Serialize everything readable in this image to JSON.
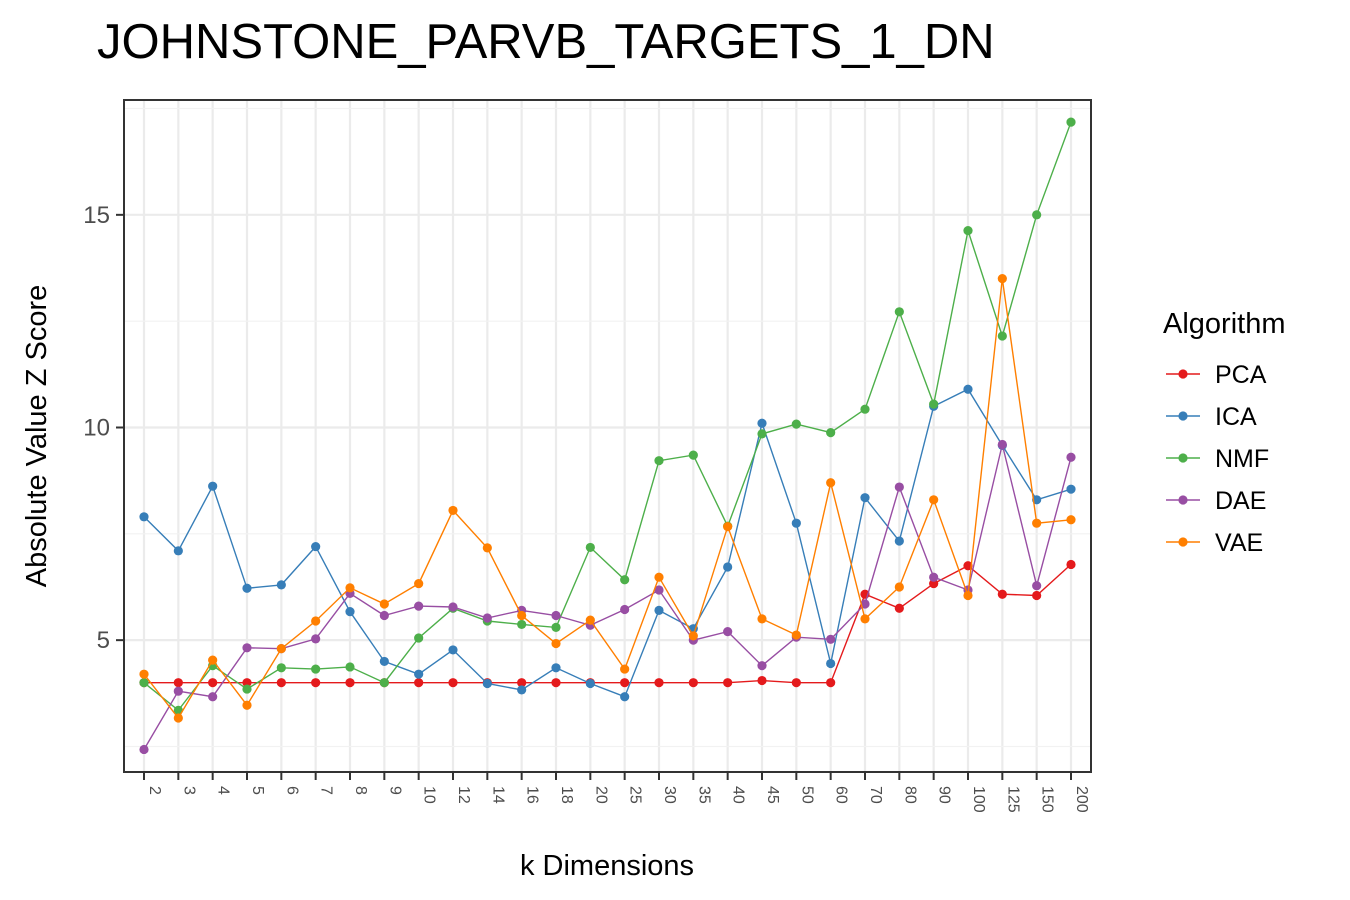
{
  "chart_data": {
    "type": "line",
    "title": "JOHNSTONE_PARVB_TARGETS_1_DN",
    "xlabel": "k Dimensions",
    "ylabel": "Absolute Value Z Score",
    "categories": [
      "2",
      "3",
      "4",
      "5",
      "6",
      "7",
      "8",
      "9",
      "10",
      "12",
      "14",
      "16",
      "18",
      "20",
      "25",
      "30",
      "35",
      "40",
      "45",
      "50",
      "60",
      "70",
      "80",
      "90",
      "100",
      "125",
      "150",
      "200"
    ],
    "ylim": [
      1.9,
      17.7
    ],
    "yticks": [
      5,
      10,
      15
    ],
    "grid": true,
    "legend": {
      "title": "Algorithm",
      "position": "right"
    },
    "series": [
      {
        "name": "PCA",
        "color": "#E41A1C",
        "values": [
          4.0,
          4.0,
          4.0,
          4.0,
          4.0,
          4.0,
          4.0,
          4.0,
          4.0,
          4.0,
          4.0,
          4.0,
          4.0,
          4.0,
          4.0,
          4.0,
          4.0,
          4.0,
          4.05,
          4.0,
          4.0,
          6.08,
          5.75,
          6.33,
          6.75,
          6.08,
          6.05,
          6.78
        ]
      },
      {
        "name": "ICA",
        "color": "#377EB8",
        "values": [
          7.9,
          7.1,
          8.62,
          6.22,
          6.3,
          7.2,
          5.67,
          4.5,
          4.2,
          4.77,
          3.98,
          3.83,
          4.35,
          3.98,
          3.67,
          5.7,
          5.27,
          6.72,
          10.1,
          7.75,
          4.45,
          8.35,
          7.33,
          10.5,
          10.9,
          9.58,
          8.3,
          8.55
        ]
      },
      {
        "name": "NMF",
        "color": "#4DAF4A",
        "values": [
          4.0,
          3.35,
          4.4,
          3.85,
          4.35,
          4.32,
          4.37,
          4.0,
          5.05,
          5.75,
          5.45,
          5.37,
          5.3,
          7.18,
          6.42,
          9.22,
          9.35,
          7.68,
          9.85,
          10.08,
          9.88,
          10.43,
          12.72,
          10.55,
          14.63,
          12.15,
          15.0,
          17.18
        ]
      },
      {
        "name": "DAE",
        "color": "#984EA3",
        "values": [
          2.43,
          3.8,
          3.67,
          4.82,
          4.8,
          5.03,
          6.1,
          5.58,
          5.8,
          5.78,
          5.52,
          5.7,
          5.58,
          5.35,
          5.72,
          6.18,
          5.0,
          5.2,
          4.4,
          5.07,
          5.02,
          5.85,
          8.6,
          6.48,
          6.18,
          9.6,
          6.28,
          9.3
        ]
      },
      {
        "name": "VAE",
        "color": "#FF7F00",
        "values": [
          4.2,
          3.17,
          4.53,
          3.47,
          4.8,
          5.45,
          6.23,
          5.85,
          6.33,
          8.05,
          7.17,
          5.58,
          4.92,
          5.47,
          4.32,
          6.48,
          5.1,
          7.67,
          5.5,
          5.12,
          8.7,
          5.5,
          6.25,
          8.3,
          6.05,
          13.5,
          7.75,
          7.83
        ]
      }
    ]
  }
}
